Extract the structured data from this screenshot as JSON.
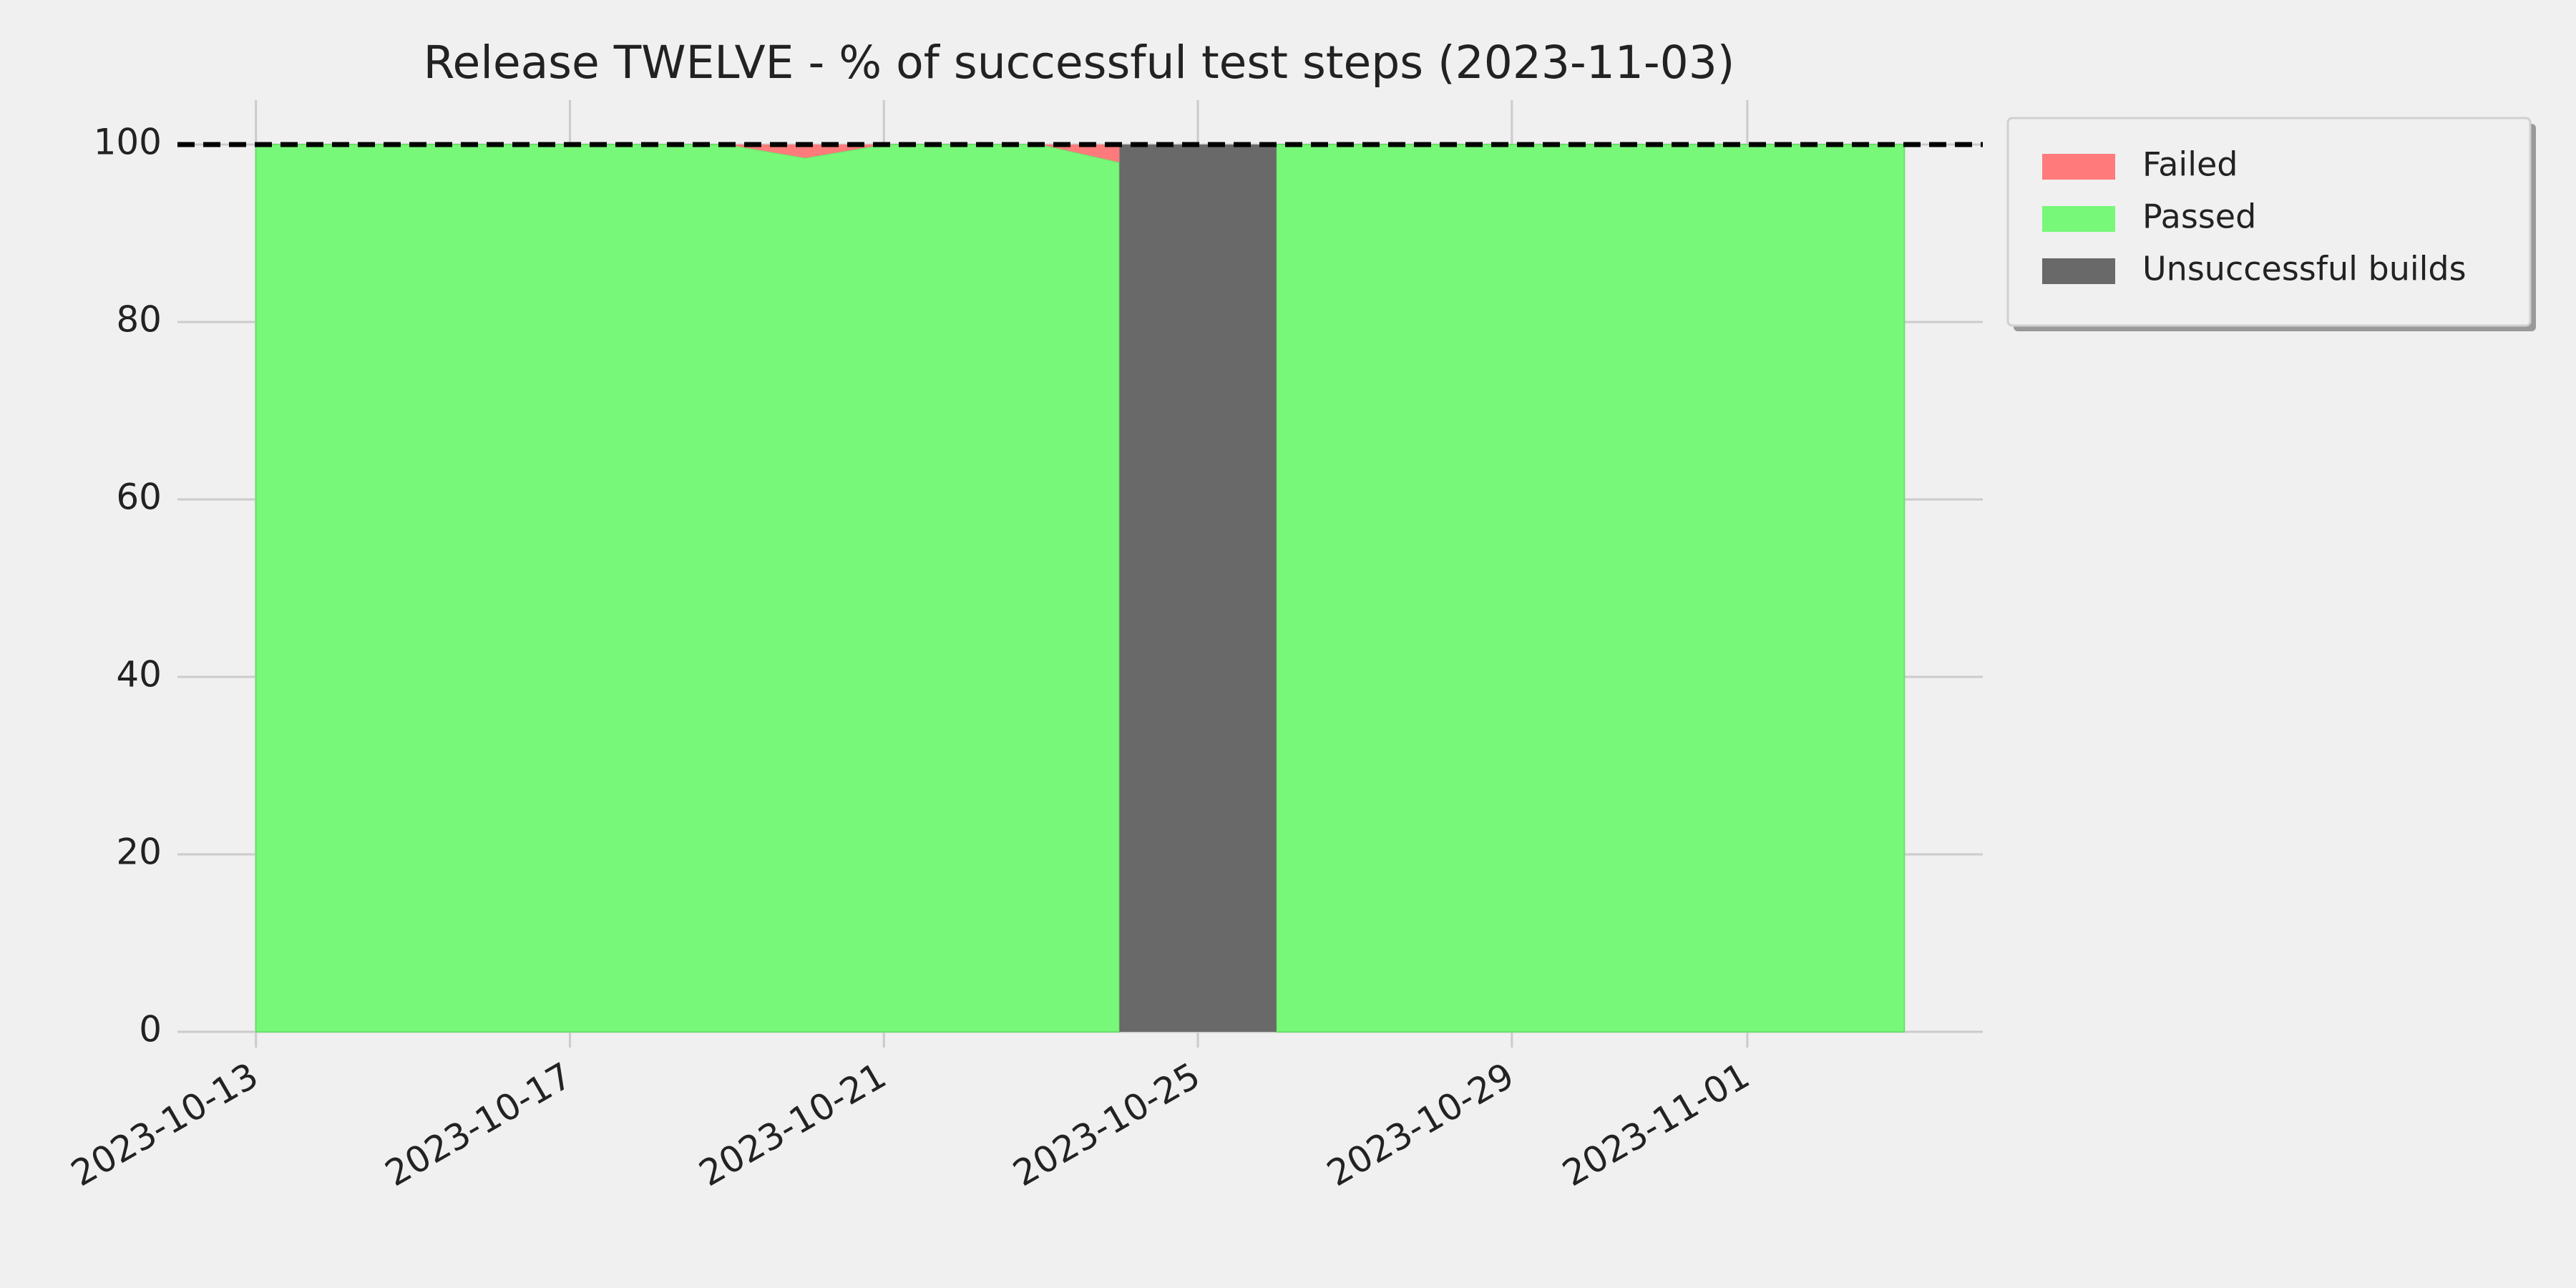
{
  "chart_data": {
    "type": "stacked_area",
    "title": "Release TWELVE - % of successful test steps (2023-11-03)",
    "x": [
      "2023-10-13",
      "2023-10-14",
      "2023-10-15",
      "2023-10-16",
      "2023-10-17",
      "2023-10-18",
      "2023-10-19",
      "2023-10-20",
      "2023-10-21",
      "2023-10-22",
      "2023-10-23",
      "2023-10-24",
      "2023-10-25",
      "2023-10-26",
      "2023-10-27",
      "2023-10-28",
      "2023-10-29",
      "2023-10-30",
      "2023-10-31",
      "2023-11-01",
      "2023-11-02",
      "2023-11-03"
    ],
    "series": [
      {
        "name": "Failed",
        "color": "#ff7b7b",
        "values": [
          0,
          0,
          0,
          0,
          0,
          0,
          0,
          1.5,
          0,
          0,
          0,
          2,
          null,
          0,
          0,
          0,
          0,
          0,
          0,
          0,
          0,
          0
        ]
      },
      {
        "name": "Passed",
        "color": "#78f878",
        "values": [
          100,
          100,
          100,
          100,
          100,
          100,
          100,
          98.5,
          100,
          100,
          100,
          98,
          null,
          100,
          100,
          100,
          100,
          100,
          100,
          100,
          100,
          100
        ]
      },
      {
        "name": "Unsuccessful builds",
        "color": "#696969",
        "values": [
          null,
          null,
          null,
          null,
          null,
          null,
          null,
          null,
          null,
          null,
          null,
          null,
          100,
          null,
          null,
          null,
          null,
          null,
          null,
          null,
          null,
          null
        ]
      }
    ],
    "xlim": [
      "2023-10-12",
      "2023-11-04"
    ],
    "xticks": [
      "2023-10-13",
      "2023-10-17",
      "2023-10-21",
      "2023-10-25",
      "2023-10-29",
      "2023-11-01"
    ],
    "ylim": [
      0,
      105
    ],
    "yticks": [
      0,
      20,
      40,
      60,
      80,
      100
    ],
    "hline": 100,
    "grid": true,
    "legend": "outside-upper-right"
  }
}
